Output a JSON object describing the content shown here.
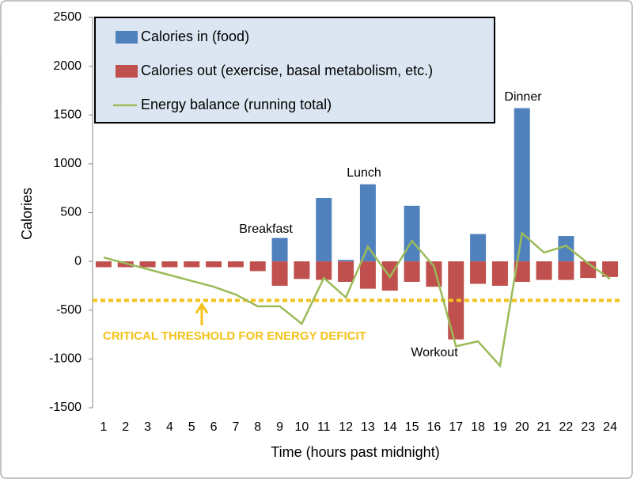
{
  "chart_data": {
    "type": "bar",
    "y_label": "Calories",
    "x_label": "Time (hours past midnight)",
    "categories": [
      "1",
      "2",
      "3",
      "4",
      "5",
      "6",
      "7",
      "8",
      "9",
      "10",
      "11",
      "12",
      "13",
      "14",
      "15",
      "16",
      "17",
      "18",
      "19",
      "20",
      "21",
      "22",
      "23",
      "24"
    ],
    "series": [
      {
        "name": "Calories in (food)",
        "color": "#4f81bd",
        "values": [
          0,
          0,
          0,
          0,
          0,
          0,
          0,
          0,
          240,
          0,
          650,
          15,
          790,
          0,
          570,
          0,
          0,
          280,
          0,
          1570,
          0,
          260,
          0,
          0
        ]
      },
      {
        "name": "Calories out (exercise, basal metabolism, etc.)",
        "color": "#c0504d",
        "values": [
          -60,
          -60,
          -60,
          -60,
          -60,
          -60,
          -60,
          -100,
          -250,
          -180,
          -190,
          -210,
          -280,
          -300,
          -210,
          -260,
          -800,
          -230,
          -250,
          -210,
          -190,
          -190,
          -170,
          -160
        ]
      },
      {
        "name": "Energy balance (running total)",
        "type": "line",
        "color": "#9bbb59",
        "values": [
          40,
          -20,
          -80,
          -140,
          -200,
          -260,
          -340,
          -460,
          -460,
          -640,
          -170,
          -370,
          150,
          -160,
          210,
          -50,
          -870,
          -820,
          -1070,
          290,
          90,
          160,
          -20,
          -180
        ]
      }
    ],
    "threshold": {
      "value": -400,
      "label": "CRITICAL THRESHOLD FOR ENERGY DEFICIT",
      "color": "#f2c21b"
    },
    "annotations": [
      "Breakfast",
      "Lunch",
      "Dinner",
      "Workout"
    ],
    "ylim": [
      -1500,
      2500
    ],
    "yticks": [
      -1500,
      -1000,
      -500,
      0,
      500,
      1000,
      1500,
      2000,
      2500
    ],
    "legend": "upper left"
  }
}
